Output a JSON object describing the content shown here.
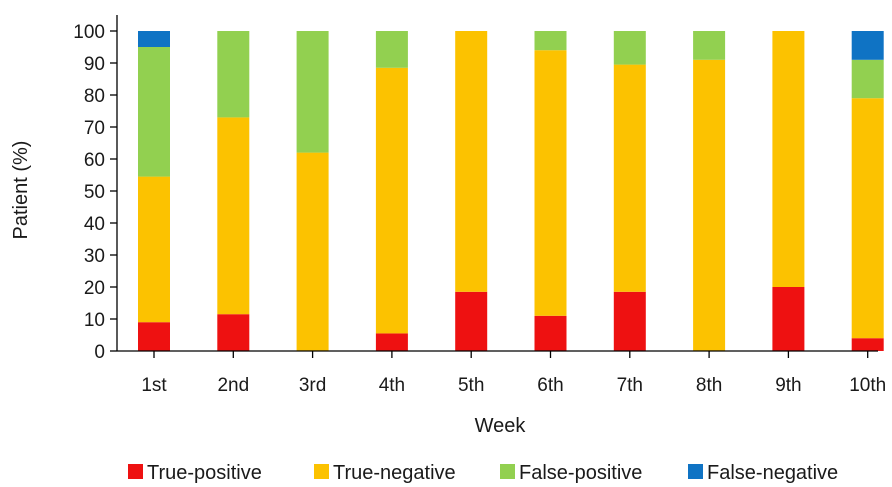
{
  "chart_data": {
    "type": "bar",
    "stacked": true,
    "xlabel": "Week",
    "ylabel": "Patient (%)",
    "ylim": [
      0,
      100
    ],
    "yticks": [
      0,
      10,
      20,
      30,
      40,
      50,
      60,
      70,
      80,
      90,
      100
    ],
    "grid": false,
    "legend_position": "bottom",
    "categories": [
      "1st",
      "2nd",
      "3rd",
      "4th",
      "5th",
      "6th",
      "7th",
      "8th",
      "9th",
      "10th"
    ],
    "series": [
      {
        "name": "True-positive",
        "color": "#ee1111",
        "values": [
          9,
          11.5,
          0,
          5.5,
          18.5,
          11,
          18.5,
          0,
          20,
          4
        ]
      },
      {
        "name": "True-negative",
        "color": "#fcc200",
        "values": [
          45.5,
          61.5,
          62,
          83,
          81.5,
          83,
          71,
          91,
          80,
          75
        ]
      },
      {
        "name": "False-positive",
        "color": "#92d050",
        "values": [
          40.5,
          27,
          38,
          11.5,
          0,
          6,
          10.5,
          9,
          0,
          12
        ]
      },
      {
        "name": "False-negative",
        "color": "#0f73c4",
        "values": [
          5,
          0,
          0,
          0,
          0,
          0,
          0,
          0,
          0,
          9
        ]
      }
    ]
  }
}
